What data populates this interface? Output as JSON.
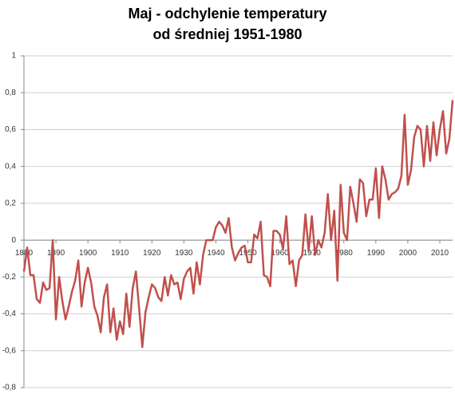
{
  "chart_data": {
    "type": "line",
    "title": [
      "Maj - odchylenie temperatury",
      "od średniej 1951-1980"
    ],
    "x": [
      1880,
      1881,
      1882,
      1883,
      1884,
      1885,
      1886,
      1887,
      1888,
      1889,
      1890,
      1891,
      1892,
      1893,
      1894,
      1895,
      1896,
      1897,
      1898,
      1899,
      1900,
      1901,
      1902,
      1903,
      1904,
      1905,
      1906,
      1907,
      1908,
      1909,
      1910,
      1911,
      1912,
      1913,
      1914,
      1915,
      1916,
      1917,
      1918,
      1919,
      1920,
      1921,
      1922,
      1923,
      1924,
      1925,
      1926,
      1927,
      1928,
      1929,
      1930,
      1931,
      1932,
      1933,
      1934,
      1935,
      1936,
      1937,
      1938,
      1939,
      1940,
      1941,
      1942,
      1943,
      1944,
      1945,
      1946,
      1947,
      1948,
      1949,
      1950,
      1951,
      1952,
      1953,
      1954,
      1955,
      1956,
      1957,
      1958,
      1959,
      1960,
      1961,
      1962,
      1963,
      1964,
      1965,
      1966,
      1967,
      1968,
      1969,
      1970,
      1971,
      1972,
      1973,
      1974,
      1975,
      1976,
      1977,
      1978,
      1979,
      1980,
      1981,
      1982,
      1983,
      1984,
      1985,
      1986,
      1987,
      1988,
      1989,
      1990,
      1991,
      1992,
      1993,
      1994,
      1995,
      1996,
      1997,
      1998,
      1999,
      2000,
      2001,
      2002,
      2003,
      2004,
      2005,
      2006,
      2007,
      2008,
      2009,
      2010,
      2011,
      2012,
      2013,
      2014
    ],
    "series": [
      {
        "color": "#c0504d",
        "values": [
          -0.17,
          -0.04,
          -0.19,
          -0.19,
          -0.32,
          -0.34,
          -0.23,
          -0.27,
          -0.26,
          0.0,
          -0.43,
          -0.2,
          -0.33,
          -0.43,
          -0.36,
          -0.28,
          -0.22,
          -0.11,
          -0.36,
          -0.23,
          -0.15,
          -0.23,
          -0.36,
          -0.41,
          -0.5,
          -0.31,
          -0.24,
          -0.5,
          -0.37,
          -0.54,
          -0.44,
          -0.51,
          -0.29,
          -0.47,
          -0.26,
          -0.17,
          -0.37,
          -0.58,
          -0.39,
          -0.31,
          -0.24,
          -0.26,
          -0.31,
          -0.33,
          -0.2,
          -0.3,
          -0.19,
          -0.24,
          -0.23,
          -0.32,
          -0.21,
          -0.17,
          -0.15,
          -0.29,
          -0.12,
          -0.24,
          -0.08,
          0.0,
          0.0,
          0.0,
          0.07,
          0.1,
          0.08,
          0.04,
          0.12,
          -0.04,
          -0.11,
          -0.07,
          -0.04,
          -0.03,
          -0.12,
          -0.12,
          0.03,
          0.01,
          0.1,
          -0.19,
          -0.2,
          -0.25,
          0.05,
          0.05,
          0.03,
          -0.05,
          0.13,
          -0.13,
          -0.11,
          -0.25,
          -0.11,
          -0.08,
          0.14,
          -0.06,
          0.13,
          -0.08,
          0.0,
          -0.04,
          0.04,
          0.25,
          0.0,
          0.16,
          -0.22,
          0.3,
          0.04,
          0.0,
          0.29,
          0.2,
          0.1,
          0.33,
          0.31,
          0.13,
          0.22,
          0.22,
          0.39,
          0.12,
          0.4,
          0.33,
          0.22,
          0.25,
          0.26,
          0.28,
          0.35,
          0.68,
          0.3,
          0.38,
          0.56,
          0.62,
          0.6,
          0.4,
          0.62,
          0.43,
          0.64,
          0.46,
          0.6,
          0.7,
          0.47,
          0.55,
          0.76
        ]
      }
    ],
    "xlim": [
      1880,
      2014
    ],
    "xticks": [
      1880,
      1890,
      1900,
      1910,
      1920,
      1930,
      1940,
      1950,
      1960,
      1970,
      1980,
      1990,
      2000,
      2010
    ],
    "ylim": [
      -0.8,
      1
    ],
    "yticks": [
      1,
      {
        "value": 0.8,
        "label": "0,8"
      },
      {
        "value": 0.6,
        "label": "0,6"
      },
      {
        "value": 0.4,
        "label": "0,4"
      },
      {
        "value": 0.2,
        "label": "0,2"
      },
      0,
      {
        "value": -0.2,
        "label": "-0,2"
      },
      {
        "value": -0.4,
        "label": "-0,4"
      },
      {
        "value": -0.6,
        "label": "-0,6"
      },
      {
        "value": -0.8,
        "label": "-0,8"
      }
    ],
    "grid": true
  }
}
